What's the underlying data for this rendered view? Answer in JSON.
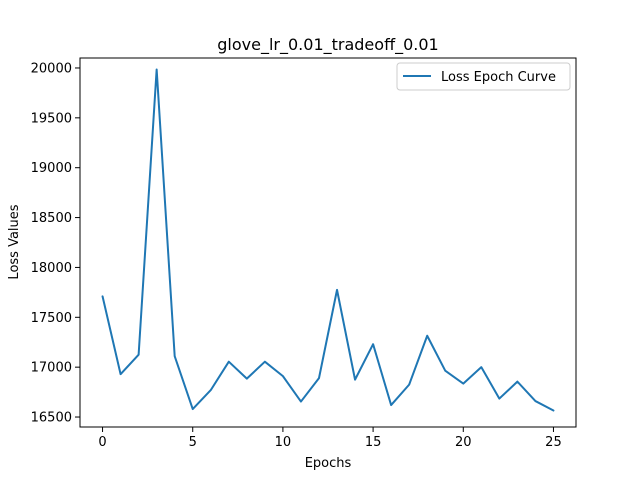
{
  "chart_data": {
    "type": "line",
    "title": "glove_lr_0.01_tradeoff_0.01",
    "xlabel": "Epochs",
    "ylabel": "Loss Values",
    "xlim": [
      -1.25,
      26.25
    ],
    "ylim": [
      16400,
      20100
    ],
    "xticks": [
      0,
      5,
      10,
      15,
      20,
      25
    ],
    "yticks": [
      16500,
      17000,
      17500,
      18000,
      18500,
      19000,
      19500,
      20000
    ],
    "grid": false,
    "legend_position": "top-right",
    "series": [
      {
        "name": "Loss Epoch Curve",
        "color": "#1f77b4",
        "x": [
          0,
          1,
          2,
          3,
          4,
          5,
          6,
          7,
          8,
          9,
          10,
          11,
          12,
          13,
          14,
          15,
          16,
          17,
          18,
          19,
          20,
          21,
          22,
          23,
          24,
          25
        ],
        "y": [
          17710,
          16930,
          17125,
          19985,
          17110,
          16580,
          16770,
          17055,
          16885,
          17055,
          16910,
          16655,
          16890,
          17775,
          16875,
          17230,
          16620,
          16825,
          17315,
          16965,
          16835,
          17000,
          16685,
          16855,
          16660,
          16565
        ]
      }
    ]
  }
}
